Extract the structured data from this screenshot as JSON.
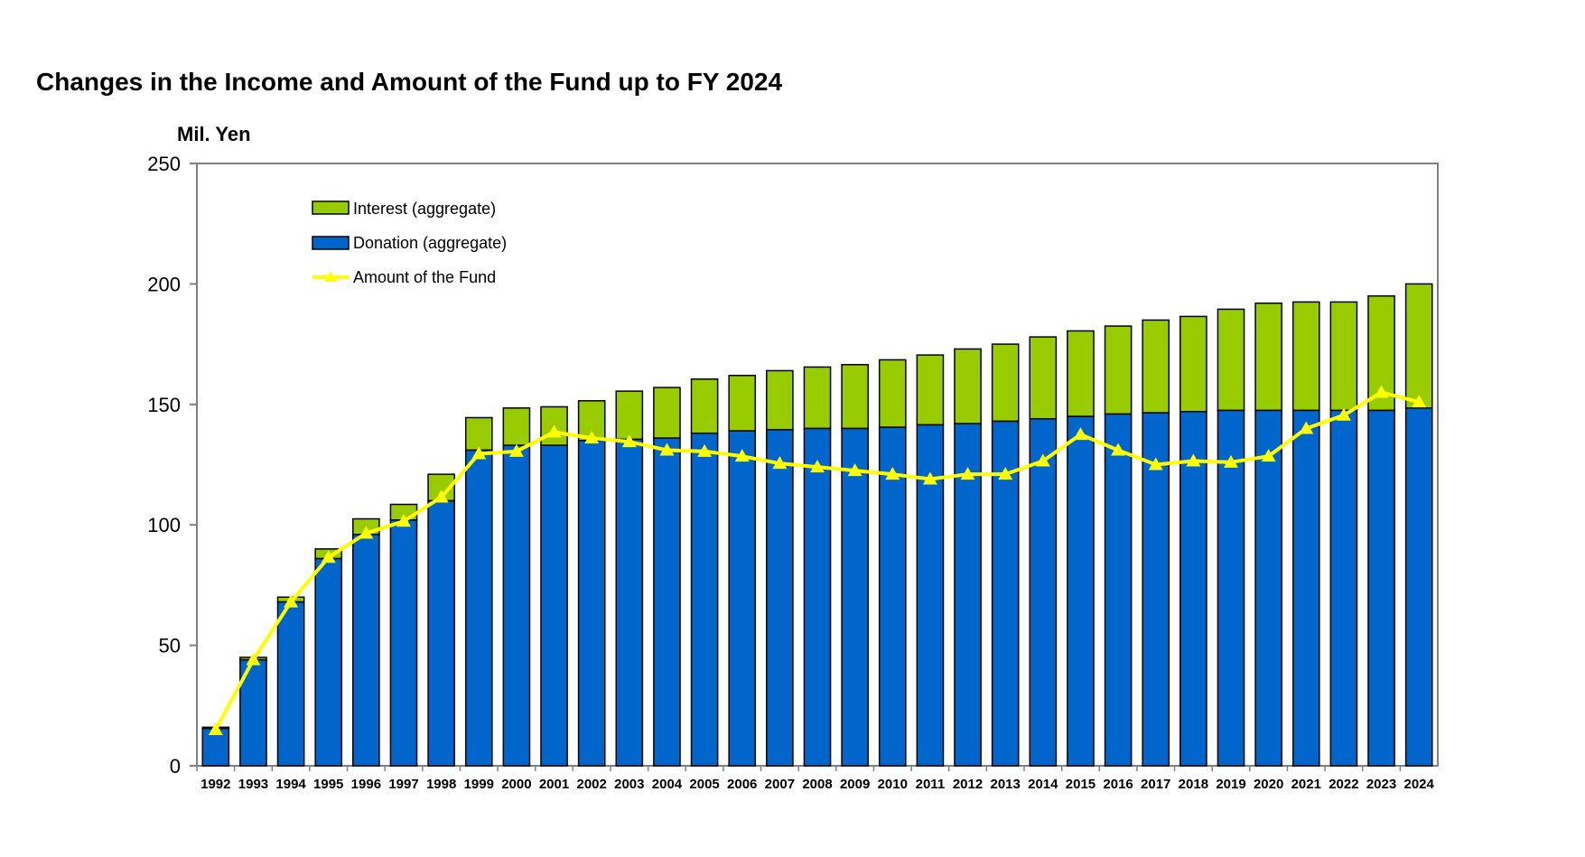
{
  "colors": {
    "interest": "#99cc00",
    "donation": "#0066cc",
    "fund_line": "#ffff00",
    "axis": "#808080",
    "bar_border": "#000000"
  },
  "chart_data": {
    "type": "bar",
    "stacked": true,
    "title": "Changes in the Income and Amount of the Fund up to FY 2024",
    "ylabel": "Mil. Yen",
    "xlabel": "",
    "ylim": [
      0,
      250
    ],
    "yticks": [
      "0",
      "50",
      "100",
      "150",
      "200",
      "250"
    ],
    "grid": false,
    "legend_position": "top-left",
    "categories": [
      "1992",
      "1993",
      "1994",
      "1995",
      "1996",
      "1997",
      "1998",
      "1999",
      "2000",
      "2001",
      "2002",
      "2003",
      "2004",
      "2005",
      "2006",
      "2007",
      "2008",
      "2009",
      "2010",
      "2011",
      "2012",
      "2013",
      "2014",
      "2015",
      "2016",
      "2017",
      "2018",
      "2019",
      "2020",
      "2021",
      "2022",
      "2023",
      "2024"
    ],
    "series": [
      {
        "name": "Donation (aggregate)",
        "type": "bar",
        "values": [
          15.5,
          44,
          68,
          86,
          96,
          102,
          110,
          131,
          133,
          133,
          135,
          135.5,
          136,
          138,
          139,
          139.5,
          140,
          140,
          140.5,
          141.5,
          142,
          143,
          144,
          145,
          146,
          146.5,
          147,
          147.5,
          147.5,
          147.5,
          147.5,
          147.5,
          148.5
        ]
      },
      {
        "name": "Interest (aggregate)",
        "type": "bar",
        "values": [
          0.5,
          1,
          2,
          4,
          6.5,
          6.5,
          11,
          13.5,
          15.5,
          16,
          16.5,
          20,
          21,
          22.5,
          23,
          24.5,
          25.5,
          26.5,
          28,
          29,
          31,
          32,
          34,
          35.5,
          36.5,
          38.5,
          39.5,
          42,
          44.5,
          45,
          45,
          47.5,
          51.5
        ]
      },
      {
        "name": "Amount of the Fund",
        "type": "line",
        "values": [
          15,
          44,
          68,
          86.5,
          96.5,
          101.5,
          111.5,
          129.5,
          130.5,
          138.5,
          136,
          134.5,
          131,
          130.5,
          128.5,
          125.5,
          124,
          122.5,
          121,
          119,
          121,
          121,
          126.5,
          137.5,
          131,
          125,
          126.5,
          126,
          128.5,
          140,
          145.5,
          155,
          151
        ]
      }
    ]
  }
}
